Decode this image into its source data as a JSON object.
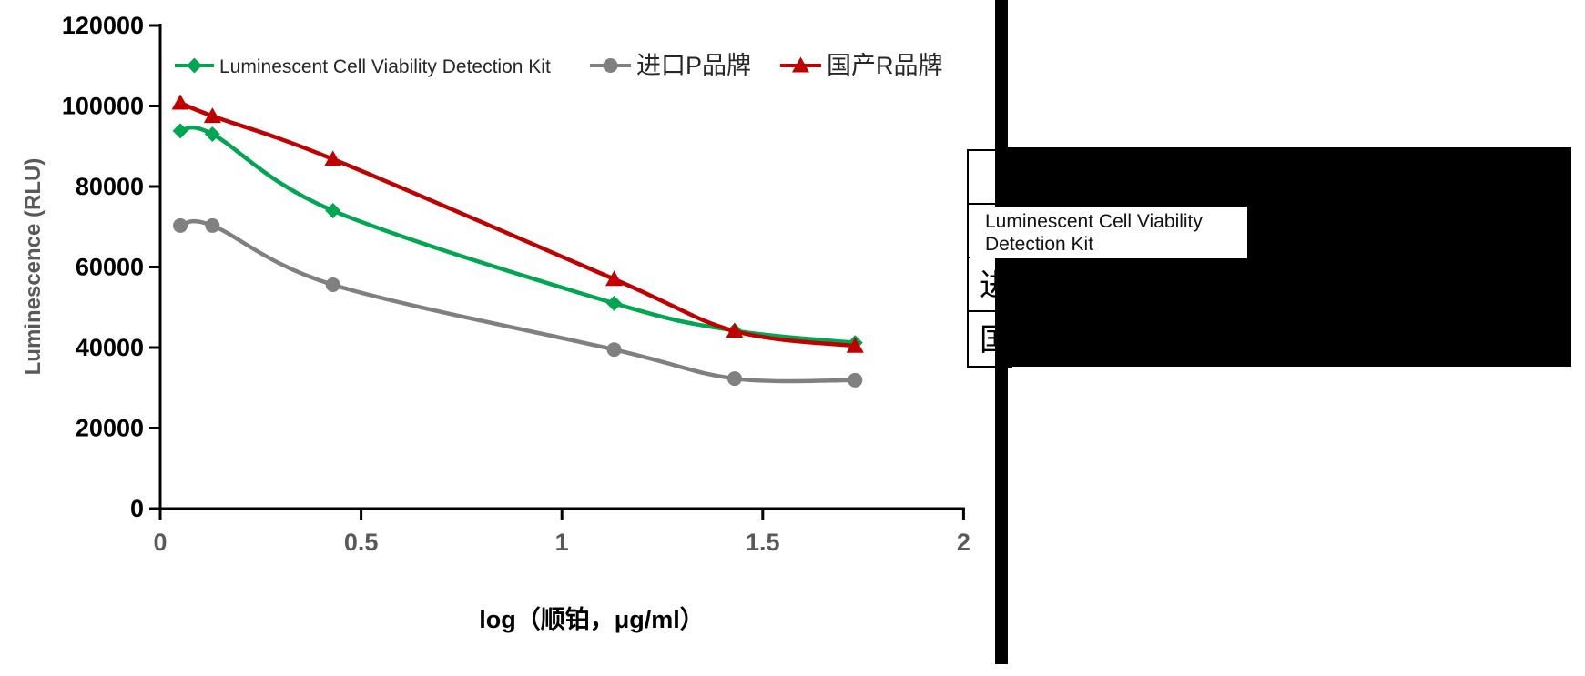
{
  "chart_data": {
    "type": "line",
    "title": "",
    "xlabel": "log（顺铂，μg/ml）",
    "ylabel": "Luminescence (RLU)",
    "x": [
      0.05,
      0.13,
      0.43,
      1.13,
      1.43,
      1.73
    ],
    "series": [
      {
        "name": "Luminescent Cell Viability Detection Kit",
        "marker": "diamond",
        "color": "#00A651",
        "values": [
          93800,
          93000,
          74000,
          51000,
          44200,
          41200
        ]
      },
      {
        "name": "进口P品牌",
        "marker": "circle",
        "color": "#808080",
        "values": [
          70300,
          70300,
          55600,
          39500,
          32300,
          31900
        ]
      },
      {
        "name": "国产R品牌",
        "marker": "triangle",
        "color": "#C00000",
        "values": [
          100800,
          97500,
          86800,
          57000,
          44100,
          40400
        ]
      }
    ],
    "x_ticks": [
      0,
      0.5,
      1,
      1.5,
      2
    ],
    "x_tick_labels": [
      "0",
      "0.5",
      "1",
      "1.5",
      "2"
    ],
    "y_ticks": [
      0,
      20000,
      40000,
      60000,
      80000,
      100000,
      120000
    ],
    "y_tick_labels": [
      "0",
      "20000",
      "40000",
      "60000",
      "80000",
      "100000",
      "120000"
    ],
    "xlim": [
      0,
      2
    ],
    "ylim": [
      0,
      120000
    ],
    "grid": false,
    "legend_position": "top"
  },
  "table": {
    "rows": [
      {
        "label": ""
      },
      {
        "label": "Luminescent Cell Viability Detection Kit"
      },
      {
        "label_partial": "进"
      },
      {
        "label_partial": "国"
      }
    ]
  },
  "colors": {
    "axis_label_text": "#595959",
    "y_tick_text": "#000000",
    "x_tick_text": "#595959",
    "redaction": "#000000"
  }
}
